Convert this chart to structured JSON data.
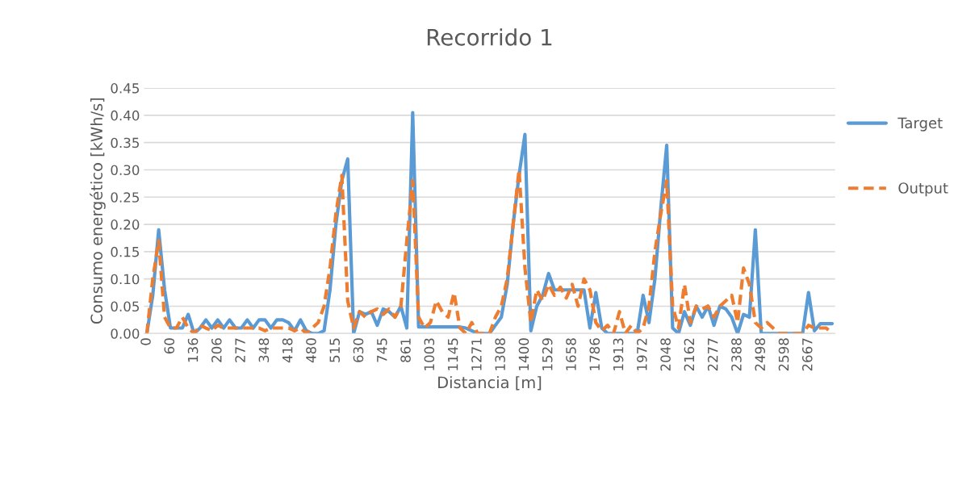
{
  "chart_data": {
    "type": "line",
    "title": "Recorrido 1",
    "xlabel": "Distancia [m]",
    "ylabel": "Consumo energético [kWh/s]",
    "categories": [
      "0",
      null,
      null,
      null,
      "60",
      null,
      null,
      null,
      "136",
      null,
      null,
      null,
      "206",
      null,
      null,
      null,
      "277",
      null,
      null,
      null,
      "348",
      null,
      null,
      null,
      "418",
      null,
      null,
      null,
      "480",
      null,
      null,
      null,
      "515",
      null,
      null,
      null,
      "630",
      null,
      null,
      null,
      "745",
      null,
      null,
      null,
      "861",
      null,
      null,
      null,
      "1003",
      null,
      null,
      null,
      "1145",
      null,
      null,
      null,
      "1271",
      null,
      null,
      null,
      "1308",
      null,
      null,
      null,
      "1400",
      null,
      null,
      null,
      "1529",
      null,
      null,
      null,
      "1658",
      null,
      null,
      null,
      "1786",
      null,
      null,
      null,
      "1913",
      null,
      null,
      null,
      "1972",
      null,
      null,
      null,
      "2048",
      null,
      null,
      null,
      "2162",
      null,
      null,
      null,
      "2277",
      null,
      null,
      null,
      "2388",
      null,
      null,
      null,
      "2498",
      null,
      null,
      null,
      "2598",
      null,
      null,
      null,
      "2667",
      null,
      null,
      null,
      null
    ],
    "series": [
      {
        "name": "Target",
        "color": "#5b9bd5",
        "line_style": "solid",
        "values": [
          0,
          0.07,
          0.19,
          0.08,
          0.01,
          0.01,
          0.01,
          0.035,
          0,
          0.01,
          0.025,
          0.01,
          0.025,
          0.01,
          0.025,
          0.01,
          0.01,
          0.025,
          0.01,
          0.025,
          0.025,
          0.01,
          0.025,
          0.025,
          0.02,
          0.005,
          0.025,
          0.005,
          0,
          0,
          0.005,
          0.08,
          0.2,
          0.28,
          0.32,
          0,
          0.04,
          0.035,
          0.04,
          0.015,
          0.045,
          0.04,
          0.03,
          0.05,
          0.01,
          0.405,
          0.012,
          0.012,
          0.012,
          0.012,
          0.012,
          0.012,
          0.012,
          0.012,
          0.01,
          0.005,
          0,
          0,
          0,
          0.015,
          0.03,
          0.09,
          0.2,
          0.29,
          0.365,
          0.005,
          0.05,
          0.07,
          0.11,
          0.08,
          0.08,
          0.08,
          0.08,
          0.08,
          0.08,
          0.01,
          0.075,
          0.01,
          0,
          0,
          0,
          0,
          0,
          0,
          0.07,
          0.02,
          0.1,
          0.23,
          0.345,
          0.01,
          0,
          0.04,
          0.015,
          0.05,
          0.03,
          0.05,
          0.015,
          0.05,
          0.045,
          0.03,
          0,
          0.035,
          0.03,
          0.19,
          0,
          0,
          0,
          0,
          0,
          0,
          0,
          0,
          0.075,
          0.005,
          0.018,
          0.018,
          0.018
        ]
      },
      {
        "name": "Output",
        "color": "#ed7d31",
        "line_style": "dashed",
        "values": [
          0,
          0.1,
          0.17,
          0.03,
          0.01,
          0.01,
          0.03,
          0.01,
          0,
          0.015,
          0.01,
          0.005,
          0.015,
          0.01,
          0.01,
          0.01,
          0.01,
          0.01,
          0.01,
          0.01,
          0.005,
          0.01,
          0.01,
          0.01,
          0.01,
          0.005,
          0.01,
          0,
          0.01,
          0.02,
          0.05,
          0.12,
          0.22,
          0.29,
          0.06,
          0.01,
          0.04,
          0.03,
          0.04,
          0.045,
          0.035,
          0.045,
          0.03,
          0.05,
          0.17,
          0.28,
          0.03,
          0.01,
          0.02,
          0.06,
          0.04,
          0.03,
          0.075,
          0.01,
          0,
          0.02,
          0,
          0,
          0,
          0.03,
          0.05,
          0.1,
          0.2,
          0.3,
          0.12,
          0.02,
          0.08,
          0.06,
          0.09,
          0.07,
          0.085,
          0.065,
          0.09,
          0.05,
          0.1,
          0.08,
          0.02,
          0.005,
          0.015,
          0,
          0.04,
          0,
          0.015,
          0,
          0.01,
          0.05,
          0.15,
          0.22,
          0.28,
          0.05,
          0.01,
          0.09,
          0.02,
          0.05,
          0.045,
          0.05,
          0.03,
          0.05,
          0.06,
          0.07,
          0.02,
          0.12,
          0.09,
          0.02,
          0.01,
          0.02,
          0.01,
          0,
          0,
          0,
          0,
          0,
          0.015,
          0.01,
          0.01,
          0.01,
          0
        ]
      }
    ],
    "ylim": [
      0,
      0.45
    ],
    "yticks": [
      {
        "value": 0,
        "label": "0.00"
      },
      {
        "value": 0.05,
        "label": "0.05"
      },
      {
        "value": 0.1,
        "label": "0.10"
      },
      {
        "value": 0.15,
        "label": "0.15"
      },
      {
        "value": 0.2,
        "label": "0.20"
      },
      {
        "value": 0.25,
        "label": "0.25"
      },
      {
        "value": 0.3,
        "label": "0.30"
      },
      {
        "value": 0.35,
        "label": "0.35"
      },
      {
        "value": 0.4,
        "label": "0.40"
      },
      {
        "value": 0.45,
        "label": "0.45"
      }
    ],
    "grid": "y",
    "legend": "right",
    "marker": "none"
  }
}
